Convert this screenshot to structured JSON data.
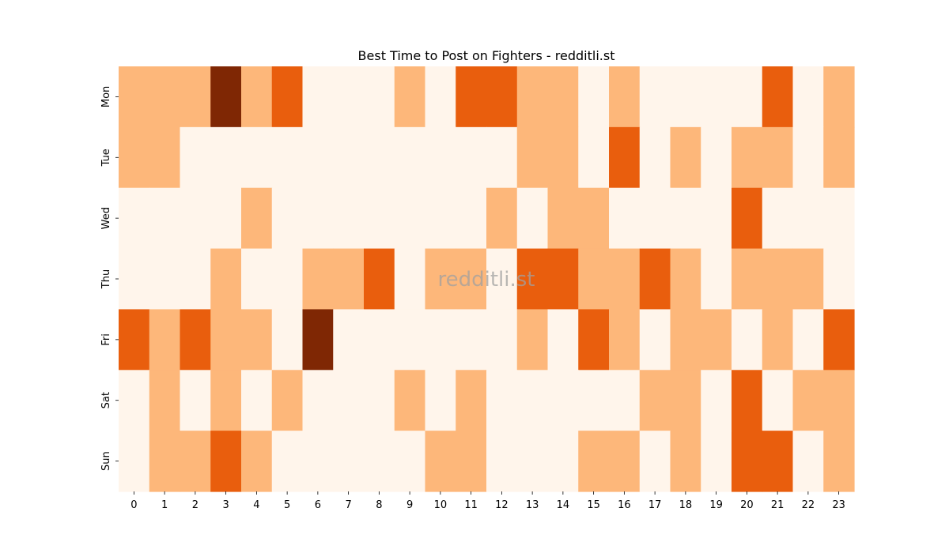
{
  "chart_data": {
    "type": "heatmap",
    "title": "Best Time to Post on Fighters - redditli.st",
    "xlabel": "",
    "ylabel": "",
    "x": [
      "0",
      "1",
      "2",
      "3",
      "4",
      "5",
      "6",
      "7",
      "8",
      "9",
      "10",
      "11",
      "12",
      "13",
      "14",
      "15",
      "16",
      "17",
      "18",
      "19",
      "20",
      "21",
      "22",
      "23"
    ],
    "y": [
      "Mon",
      "Tue",
      "Wed",
      "Thu",
      "Fri",
      "Sat",
      "Sun"
    ],
    "values": [
      [
        1,
        1,
        1,
        3,
        1,
        2,
        0,
        0,
        0,
        1,
        0,
        2,
        2,
        1,
        1,
        0,
        1,
        0,
        0,
        0,
        0,
        2,
        0,
        1
      ],
      [
        1,
        1,
        0,
        0,
        0,
        0,
        0,
        0,
        0,
        0,
        0,
        0,
        0,
        1,
        1,
        0,
        2,
        0,
        1,
        0,
        1,
        1,
        0,
        1
      ],
      [
        0,
        0,
        0,
        0,
        1,
        0,
        0,
        0,
        0,
        0,
        0,
        0,
        1,
        0,
        1,
        1,
        0,
        0,
        0,
        0,
        2,
        0,
        0,
        0
      ],
      [
        0,
        0,
        0,
        1,
        0,
        0,
        1,
        1,
        2,
        0,
        1,
        1,
        0,
        2,
        2,
        1,
        1,
        2,
        1,
        0,
        1,
        1,
        1,
        0
      ],
      [
        2,
        1,
        2,
        1,
        1,
        0,
        3,
        0,
        0,
        0,
        0,
        0,
        0,
        1,
        0,
        2,
        1,
        0,
        1,
        1,
        0,
        1,
        0,
        2
      ],
      [
        0,
        1,
        0,
        1,
        0,
        1,
        0,
        0,
        0,
        1,
        0,
        1,
        0,
        0,
        0,
        0,
        0,
        1,
        1,
        0,
        2,
        0,
        1,
        1
      ],
      [
        0,
        1,
        1,
        2,
        1,
        0,
        0,
        0,
        0,
        0,
        1,
        1,
        0,
        0,
        0,
        1,
        1,
        0,
        1,
        0,
        2,
        2,
        0,
        1
      ]
    ],
    "colorscale": [
      "#fff5eb",
      "#fdb77a",
      "#e95e0d",
      "#7f2704"
    ],
    "colorbar": false,
    "grid": false,
    "watermark": "redditli.st"
  }
}
